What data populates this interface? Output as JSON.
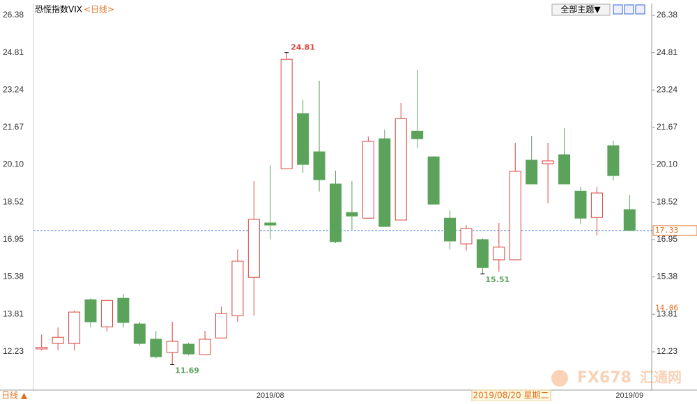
{
  "title": "恐慌指数VIX",
  "period": "<日线>",
  "theme_menu": "全部主题▼",
  "period_button": "日线 ▲",
  "crosshair_label": "2019/08/20 星期二",
  "watermark": [
    "FX678",
    "汇通网"
  ],
  "chart_data": {
    "type": "candlestick",
    "categories": [
      null,
      null,
      null,
      null,
      null,
      null,
      null,
      null,
      null,
      null,
      null,
      null,
      null,
      null,
      "2019/08",
      null,
      null,
      null,
      null,
      null,
      null,
      null,
      null,
      null,
      null,
      null,
      null,
      null,
      null,
      null,
      null,
      null,
      null,
      null,
      null,
      null,
      "2019/09"
    ],
    "open": [
      12.35,
      12.58,
      12.58,
      14.42,
      13.28,
      14.48,
      13.4,
      12.76,
      12.2,
      12.55,
      12.11,
      12.81,
      13.75,
      15.36,
      17.65,
      19.93,
      22.25,
      20.64,
      19.29,
      18.09,
      17.85,
      21.19,
      17.77,
      21.51,
      20.43,
      17.85,
      16.77,
      16.95,
      16.1,
      16.1,
      20.29,
      20.14,
      20.52,
      18.99,
      17.88,
      20.9,
      18.21
    ],
    "high": [
      12.96,
      13.25,
      13.95,
      14.48,
      14.42,
      14.66,
      13.49,
      13.11,
      13.49,
      12.61,
      13.11,
      14.13,
      16.54,
      19.41,
      20.08,
      24.81,
      22.83,
      23.63,
      19.85,
      19.41,
      21.28,
      21.57,
      22.69,
      24.09,
      20.46,
      18.18,
      17.56,
      17.0,
      17.65,
      21.02,
      21.31,
      21.02,
      21.63,
      19.17,
      19.17,
      21.11,
      18.82
    ],
    "low": [
      12.3,
      12.29,
      12.29,
      13.25,
      13.08,
      13.25,
      12.49,
      11.96,
      11.69,
      12.08,
      12.11,
      12.81,
      13.49,
      13.75,
      16.96,
      19.93,
      19.76,
      18.97,
      16.8,
      17.36,
      17.85,
      17.5,
      17.77,
      20.81,
      18.44,
      16.54,
      16.48,
      15.51,
      15.6,
      16.1,
      19.29,
      18.47,
      19.29,
      17.59,
      17.12,
      19.44,
      17.3
    ],
    "close": [
      12.42,
      12.84,
      13.9,
      13.49,
      14.39,
      13.46,
      12.58,
      12.02,
      12.67,
      12.14,
      12.76,
      13.84,
      16.04,
      17.8,
      17.56,
      24.53,
      20.11,
      19.47,
      16.86,
      17.94,
      21.08,
      17.5,
      22.04,
      21.19,
      18.44,
      16.89,
      17.41,
      15.77,
      16.63,
      19.82,
      19.29,
      20.26,
      19.29,
      17.85,
      18.91,
      19.64,
      17.33
    ],
    "up_color": "#d9443c",
    "down_color": "#5ba35b",
    "ylim": [
      10.62,
      26.88
    ],
    "yticks": [
      12.23,
      13.81,
      15.38,
      16.95,
      18.52,
      {
        "value": 20.1,
        "label": "20.10"
      },
      21.67,
      23.24,
      24.81,
      26.38
    ],
    "grid": false,
    "high_labels": [
      24.81
    ],
    "low_labels": [
      11.69,
      15.51
    ],
    "last_price": 17.33,
    "price_marker": 14.06
  }
}
